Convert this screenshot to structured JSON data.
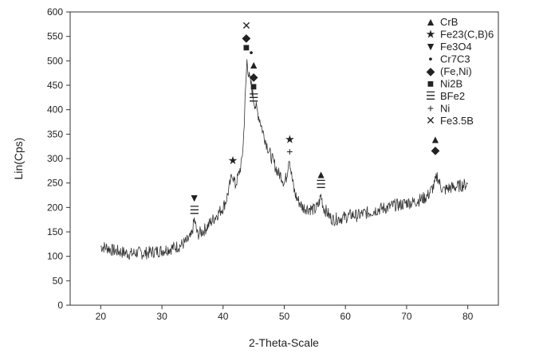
{
  "chart_data": {
    "type": "line",
    "title": "",
    "xlabel": "2-Theta-Scale",
    "ylabel": "Lin(Cps)",
    "xlim": [
      15,
      85
    ],
    "ylim": [
      0,
      600
    ],
    "x_ticks": [
      20,
      30,
      40,
      50,
      60,
      70,
      80
    ],
    "x_tick_labels": [
      "20",
      "30",
      "40",
      "50",
      "60",
      "70",
      "80"
    ],
    "y_ticks": [
      0,
      50,
      100,
      150,
      200,
      250,
      300,
      350,
      400,
      450,
      500,
      550,
      600
    ],
    "y_tick_labels": [
      "0",
      "50",
      "100",
      "150",
      "200",
      "250",
      "300",
      "350",
      "400",
      "450",
      "500",
      "550",
      "600"
    ],
    "grid": false,
    "legend_position": "top-right",
    "series": [
      {
        "color": "#333333",
        "x": [
          20,
          21,
          22,
          23,
          24,
          25,
          26,
          27,
          28,
          29,
          30,
          31,
          32,
          33,
          34,
          34.8,
          35.3,
          35.8,
          36.5,
          37,
          38,
          39,
          40,
          40.5,
          41,
          41.5,
          42,
          42.5,
          43,
          43.3,
          43.6,
          43.9,
          44.2,
          44.6,
          45,
          45.5,
          46,
          46.5,
          47,
          47.5,
          48,
          48.5,
          49,
          49.5,
          50,
          50.4,
          50.8,
          51.2,
          51.6,
          52,
          52.5,
          53,
          54,
          55,
          55.6,
          56,
          56.4,
          57,
          57.5,
          58,
          59,
          60,
          61,
          62,
          63,
          64,
          65,
          66,
          67,
          68,
          69,
          70,
          71,
          72,
          73,
          73.5,
          74,
          74.5,
          75,
          75.5,
          76,
          77,
          78,
          79,
          80
        ],
        "y": [
          120,
          118,
          112,
          110,
          107,
          105,
          108,
          106,
          108,
          110,
          112,
          115,
          118,
          122,
          130,
          140,
          175,
          145,
          150,
          155,
          170,
          185,
          200,
          215,
          240,
          270,
          245,
          265,
          290,
          330,
          420,
          500,
          470,
          450,
          420,
          400,
          380,
          355,
          335,
          315,
          300,
          285,
          270,
          265,
          250,
          265,
          305,
          265,
          235,
          220,
          210,
          200,
          198,
          195,
          205,
          225,
          200,
          190,
          180,
          175,
          178,
          180,
          185,
          183,
          188,
          190,
          195,
          198,
          200,
          205,
          205,
          210,
          210,
          215,
          220,
          225,
          235,
          245,
          265,
          245,
          235,
          240,
          242,
          245,
          248
        ]
      }
    ],
    "legend": [
      {
        "symbol": "▲",
        "label": "CrB"
      },
      {
        "symbol": "★",
        "label": "Fe23(C,B)6"
      },
      {
        "symbol": "▼",
        "label": "Fe3O4"
      },
      {
        "symbol": "•",
        "label": "Cr7C3"
      },
      {
        "symbol": "◆",
        "label": "(Fe,Ni)"
      },
      {
        "symbol": "■",
        "label": "Ni2B"
      },
      {
        "symbol": "☰",
        "label": "BFe2"
      },
      {
        "symbol": "+",
        "label": "Ni"
      },
      {
        "symbol": "✕",
        "label": "Fe3.5B"
      }
    ],
    "annotations": [
      {
        "symbol": "▼",
        "x": 35.3,
        "y": 220
      },
      {
        "symbol": "☰",
        "x": 35.3,
        "y": 195
      },
      {
        "symbol": "★",
        "x": 41.6,
        "y": 297
      },
      {
        "symbol": "✕",
        "x": 43.8,
        "y": 572
      },
      {
        "symbol": "◆",
        "x": 43.8,
        "y": 548
      },
      {
        "symbol": "■",
        "x": 43.8,
        "y": 528
      },
      {
        "symbol": "•",
        "x": 44.6,
        "y": 518
      },
      {
        "symbol": "▲",
        "x": 45.0,
        "y": 492
      },
      {
        "symbol": "◆",
        "x": 45.0,
        "y": 468
      },
      {
        "symbol": "■",
        "x": 45.0,
        "y": 448
      },
      {
        "symbol": "☰",
        "x": 45.0,
        "y": 425
      },
      {
        "symbol": "★",
        "x": 50.9,
        "y": 340
      },
      {
        "symbol": "+",
        "x": 50.9,
        "y": 315
      },
      {
        "symbol": "▲",
        "x": 56.0,
        "y": 268
      },
      {
        "symbol": "☰",
        "x": 56.0,
        "y": 248
      },
      {
        "symbol": "▲",
        "x": 74.7,
        "y": 340
      },
      {
        "symbol": "◆",
        "x": 74.7,
        "y": 318
      }
    ]
  }
}
